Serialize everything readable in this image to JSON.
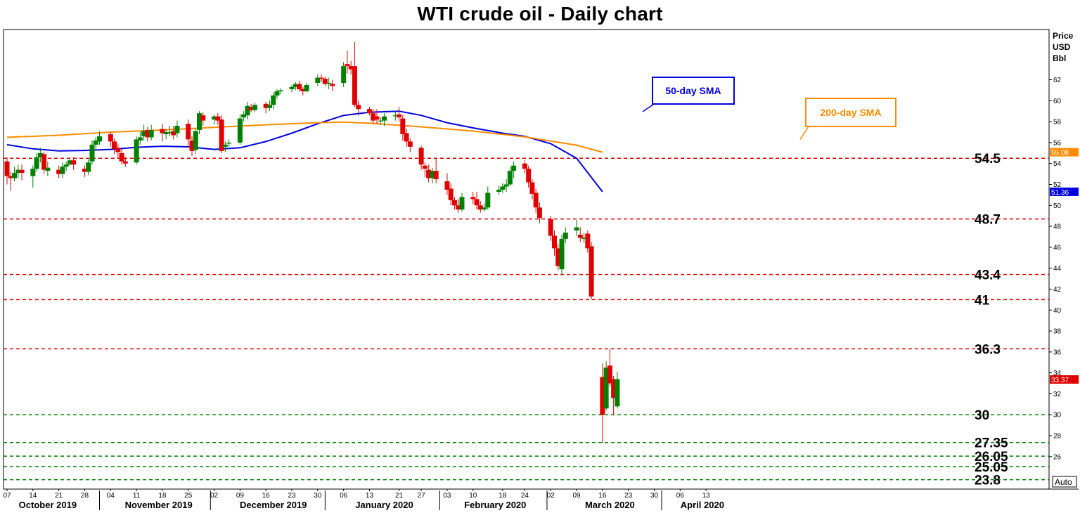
{
  "title": "WTI crude oil - Daily chart",
  "axis_unit": [
    "Price",
    "USD",
    "Bbl"
  ],
  "auto_label": "Auto",
  "colors": {
    "up": "#008000",
    "down": "#e00000",
    "sma50": "#0000e0",
    "sma200": "#ff8c00",
    "resistance": "#e00000",
    "support": "#008000"
  },
  "chart_data": {
    "type": "candlestick",
    "ylim": [
      22.9,
      66.8
    ],
    "y_ticks": [
      26,
      28,
      30,
      32,
      34,
      36,
      38,
      40,
      42,
      44,
      46,
      48,
      50,
      52,
      54,
      56,
      58,
      60,
      62
    ],
    "x_ticks": [
      {
        "label": "07",
        "day": 0
      },
      {
        "label": "14",
        "day": 7
      },
      {
        "label": "21",
        "day": 14
      },
      {
        "label": "28",
        "day": 21
      },
      {
        "label": "04",
        "day": 28
      },
      {
        "label": "11",
        "day": 35
      },
      {
        "label": "18",
        "day": 42
      },
      {
        "label": "25",
        "day": 49
      },
      {
        "label": "02",
        "day": 56
      },
      {
        "label": "09",
        "day": 63
      },
      {
        "label": "16",
        "day": 70
      },
      {
        "label": "23",
        "day": 77
      },
      {
        "label": "30",
        "day": 84
      },
      {
        "label": "06",
        "day": 91
      },
      {
        "label": "13",
        "day": 98
      },
      {
        "label": "21",
        "day": 106
      },
      {
        "label": "27",
        "day": 112
      },
      {
        "label": "03",
        "day": 119
      },
      {
        "label": "10",
        "day": 126
      },
      {
        "label": "18",
        "day": 134
      },
      {
        "label": "24",
        "day": 140
      },
      {
        "label": "02",
        "day": 147
      },
      {
        "label": "09",
        "day": 154
      },
      {
        "label": "16",
        "day": 161
      },
      {
        "label": "23",
        "day": 168
      },
      {
        "label": "30",
        "day": 175
      },
      {
        "label": "06",
        "day": 182
      },
      {
        "label": "13",
        "day": 189
      }
    ],
    "months": [
      {
        "label": "October 2019",
        "center_day": 11,
        "sep_day": null
      },
      {
        "label": "November 2019",
        "center_day": 41,
        "sep_day": 25
      },
      {
        "label": "December 2019",
        "center_day": 72,
        "sep_day": 55
      },
      {
        "label": "January 2020",
        "center_day": 102,
        "sep_day": 86
      },
      {
        "label": "February 2020",
        "center_day": 132,
        "sep_day": 117
      },
      {
        "label": "March 2020",
        "center_day": 163,
        "sep_day": 146
      },
      {
        "label": "April 2020",
        "center_day": 188,
        "sep_day": 177
      }
    ],
    "candles": [
      [
        0,
        54.2,
        52.8,
        54.6,
        52.0
      ],
      [
        1,
        52.8,
        52.6,
        53.2,
        51.4
      ],
      [
        2,
        52.6,
        53.1,
        53.7,
        52.3
      ],
      [
        3,
        53.1,
        53.4,
        53.9,
        52.6
      ],
      [
        4,
        53.4,
        53.1,
        53.9,
        52.4
      ],
      [
        7,
        52.8,
        53.5,
        53.8,
        51.7
      ],
      [
        8,
        53.5,
        54.6,
        55.0,
        53.2
      ],
      [
        9,
        54.6,
        55.0,
        55.5,
        54.1
      ],
      [
        10,
        54.9,
        53.4,
        55.1,
        53.0
      ],
      [
        11,
        53.3,
        53.6,
        54.2,
        52.8
      ],
      [
        14,
        53.4,
        53.0,
        53.8,
        52.6
      ],
      [
        15,
        53.0,
        53.7,
        54.1,
        52.6
      ],
      [
        16,
        53.7,
        53.9,
        54.2,
        53.3
      ],
      [
        17,
        53.9,
        54.3,
        54.6,
        53.8
      ],
      [
        18,
        54.3,
        53.9,
        54.6,
        53.4
      ],
      [
        21,
        53.5,
        53.2,
        53.8,
        52.7
      ],
      [
        22,
        53.2,
        54.1,
        54.4,
        52.9
      ],
      [
        23,
        54.2,
        55.8,
        56.2,
        53.9
      ],
      [
        24,
        55.8,
        56.2,
        56.5,
        55.4
      ],
      [
        25,
        56.1,
        56.6,
        57.1,
        55.8
      ],
      [
        28,
        56.8,
        56.1,
        57.0,
        55.6
      ],
      [
        29,
        56.1,
        55.4,
        56.4,
        54.9
      ],
      [
        30,
        55.5,
        55.1,
        55.9,
        54.5
      ],
      [
        31,
        55.0,
        54.2,
        55.4,
        53.9
      ],
      [
        32,
        54.2,
        54.0,
        54.6,
        53.7
      ],
      [
        35,
        54.1,
        56.3,
        56.6,
        53.9
      ],
      [
        36,
        56.2,
        56.5,
        57.0,
        55.8
      ],
      [
        37,
        56.6,
        57.1,
        57.7,
        56.2
      ],
      [
        38,
        57.2,
        56.5,
        57.5,
        56.1
      ],
      [
        39,
        56.5,
        57.2,
        57.7,
        56.2
      ],
      [
        42,
        57.3,
        56.9,
        57.8,
        56.1
      ],
      [
        43,
        56.8,
        57.0,
        57.3,
        56.3
      ],
      [
        44,
        56.9,
        57.0,
        57.6,
        56.6
      ],
      [
        45,
        57.1,
        56.7,
        57.6,
        56.3
      ],
      [
        46,
        56.9,
        57.6,
        58.1,
        56.5
      ],
      [
        49,
        57.8,
        56.3,
        58.2,
        55.6
      ],
      [
        50,
        56.2,
        55.2,
        56.6,
        54.7
      ],
      [
        51,
        55.3,
        57.1,
        57.3,
        54.9
      ],
      [
        52,
        57.2,
        58.8,
        59.0,
        56.8
      ],
      [
        53,
        58.6,
        58.1,
        58.9,
        57.6
      ],
      [
        56,
        58.2,
        58.5,
        58.7,
        57.7
      ],
      [
        57,
        58.5,
        58.1,
        58.8,
        57.7
      ],
      [
        58,
        58.2,
        55.2,
        58.6,
        55.0
      ],
      [
        59,
        55.6,
        55.8,
        56.1,
        55.1
      ],
      [
        60,
        55.9,
        56.0,
        56.3,
        55.6
      ],
      [
        63,
        56.0,
        58.3,
        58.7,
        55.8
      ],
      [
        64,
        58.4,
        58.7,
        59.0,
        58.0
      ],
      [
        65,
        58.6,
        59.5,
        59.9,
        58.2
      ],
      [
        66,
        59.4,
        59.1,
        59.7,
        58.9
      ],
      [
        67,
        59.1,
        59.6,
        59.8,
        58.9
      ],
      [
        70,
        59.7,
        59.3,
        59.9,
        58.8
      ],
      [
        71,
        59.3,
        59.6,
        60.0,
        59.0
      ],
      [
        72,
        59.6,
        60.5,
        60.8,
        59.2
      ],
      [
        73,
        60.5,
        60.9,
        61.1,
        60.2
      ],
      [
        74,
        60.9,
        61.0,
        61.2,
        60.6
      ],
      [
        77,
        61.1,
        61.3,
        61.5,
        60.8
      ],
      [
        78,
        61.3,
        61.6,
        61.8,
        61.0
      ],
      [
        79,
        61.6,
        61.1,
        61.9,
        60.9
      ],
      [
        80,
        61.1,
        60.9,
        61.3,
        60.5
      ],
      [
        81,
        60.9,
        61.5,
        61.7,
        60.8
      ],
      [
        84,
        61.7,
        62.2,
        62.5,
        61.4
      ],
      [
        85,
        62.2,
        62.1,
        62.5,
        61.8
      ],
      [
        86,
        62.1,
        61.6,
        62.3,
        61.4
      ],
      [
        87,
        61.6,
        61.7,
        62.2,
        61.1
      ],
      [
        88,
        61.6,
        61.4,
        62.0,
        60.9
      ],
      [
        91,
        61.7,
        63.3,
        63.7,
        61.3
      ],
      [
        92,
        63.5,
        63.3,
        64.8,
        62.6
      ],
      [
        93,
        63.3,
        63.0,
        63.8,
        62.5
      ],
      [
        94,
        63.3,
        59.6,
        65.6,
        59.4
      ],
      [
        95,
        59.6,
        59.2,
        60.0,
        58.6
      ],
      [
        98,
        59.2,
        58.8,
        59.4,
        58.6
      ],
      [
        99,
        58.8,
        58.1,
        59.2,
        57.8
      ],
      [
        100,
        58.5,
        58.2,
        59.2,
        57.8
      ],
      [
        101,
        58.1,
        58.1,
        58.4,
        57.7
      ],
      [
        102,
        58.1,
        58.5,
        58.8,
        57.6
      ],
      [
        105,
        58.6,
        58.6,
        59.0,
        58.1
      ],
      [
        106,
        58.7,
        58.4,
        59.4,
        58.0
      ],
      [
        107,
        58.3,
        56.8,
        58.6,
        56.2
      ],
      [
        108,
        56.9,
        56.1,
        57.3,
        55.6
      ],
      [
        109,
        56.1,
        55.6,
        56.4,
        55.1
      ],
      [
        112,
        55.5,
        53.9,
        55.7,
        53.4
      ],
      [
        113,
        53.8,
        53.5,
        54.1,
        52.7
      ],
      [
        114,
        53.4,
        52.6,
        53.9,
        52.2
      ],
      [
        115,
        52.6,
        53.3,
        53.6,
        52.1
      ],
      [
        116,
        53.3,
        52.5,
        54.5,
        52.1
      ],
      [
        119,
        52.3,
        51.5,
        53.1,
        51.0
      ],
      [
        120,
        51.6,
        50.5,
        52.1,
        50.0
      ],
      [
        121,
        50.5,
        50.0,
        50.8,
        49.6
      ],
      [
        122,
        50.0,
        49.6,
        50.6,
        49.3
      ],
      [
        123,
        49.6,
        50.8,
        51.2,
        49.4
      ],
      [
        126,
        50.8,
        50.6,
        51.3,
        50.1
      ],
      [
        127,
        50.6,
        50.0,
        51.3,
        49.6
      ],
      [
        128,
        50.0,
        49.6,
        50.4,
        49.3
      ],
      [
        129,
        49.6,
        49.8,
        50.2,
        49.4
      ],
      [
        130,
        49.8,
        51.2,
        51.8,
        49.6
      ],
      [
        133,
        51.3,
        51.5,
        51.9,
        51.0
      ],
      [
        134,
        51.5,
        51.8,
        52.1,
        51.2
      ],
      [
        135,
        51.8,
        52.0,
        52.5,
        51.3
      ],
      [
        136,
        52.0,
        53.3,
        53.7,
        51.8
      ],
      [
        137,
        53.3,
        53.8,
        54.2,
        52.6
      ],
      [
        140,
        54.0,
        53.5,
        54.3,
        53.1
      ],
      [
        141,
        53.5,
        52.2,
        53.8,
        51.7
      ],
      [
        142,
        52.2,
        51.1,
        52.5,
        50.6
      ],
      [
        143,
        51.2,
        49.8,
        51.6,
        49.3
      ],
      [
        144,
        49.8,
        48.8,
        50.3,
        48.3
      ],
      [
        147,
        48.7,
        47.1,
        49.0,
        46.6
      ],
      [
        148,
        47.1,
        45.9,
        47.6,
        45.2
      ],
      [
        149,
        45.9,
        44.2,
        46.3,
        43.8
      ],
      [
        150,
        43.9,
        46.8,
        47.2,
        43.4
      ],
      [
        151,
        46.8,
        47.4,
        47.9,
        46.4
      ],
      [
        154,
        47.6,
        47.9,
        48.6,
        47.1
      ],
      [
        155,
        47.2,
        46.9,
        47.9,
        46.5
      ],
      [
        156,
        46.8,
        46.9,
        47.4,
        46.4
      ],
      [
        157,
        47.3,
        45.9,
        47.6,
        45.5
      ],
      [
        158,
        46.1,
        41.3,
        46.5,
        41.0
      ],
      [
        161,
        33.6,
        30.0,
        34.9,
        27.3
      ],
      [
        162,
        30.6,
        34.5,
        35.1,
        30.4
      ],
      [
        163,
        34.7,
        33.0,
        36.3,
        32.7
      ],
      [
        164,
        33.4,
        31.6,
        33.7,
        30.0
      ],
      [
        165,
        30.8,
        33.4,
        34.1,
        30.6
      ]
    ],
    "series": [
      {
        "name": "50-day SMA",
        "points": [
          [
            0,
            55.8
          ],
          [
            7,
            55.4
          ],
          [
            14,
            55.2
          ],
          [
            21,
            55.25
          ],
          [
            28,
            55.35
          ],
          [
            35,
            55.55
          ],
          [
            42,
            55.65
          ],
          [
            49,
            55.6
          ],
          [
            56,
            55.35
          ],
          [
            63,
            55.5
          ],
          [
            70,
            56.1
          ],
          [
            77,
            56.9
          ],
          [
            84,
            57.8
          ],
          [
            91,
            58.6
          ],
          [
            98,
            58.9
          ],
          [
            106,
            59.0
          ],
          [
            112,
            58.6
          ],
          [
            119,
            57.9
          ],
          [
            126,
            57.4
          ],
          [
            134,
            56.9
          ],
          [
            140,
            56.6
          ],
          [
            147,
            55.9
          ],
          [
            154,
            54.5
          ],
          [
            161,
            51.3
          ]
        ],
        "last_value": "51.36"
      },
      {
        "name": "200-day SMA",
        "points": [
          [
            0,
            56.5
          ],
          [
            14,
            56.7
          ],
          [
            28,
            57.0
          ],
          [
            42,
            57.2
          ],
          [
            56,
            57.45
          ],
          [
            70,
            57.7
          ],
          [
            84,
            57.9
          ],
          [
            91,
            57.95
          ],
          [
            98,
            57.85
          ],
          [
            112,
            57.5
          ],
          [
            126,
            57.1
          ],
          [
            140,
            56.55
          ],
          [
            154,
            55.75
          ],
          [
            161,
            55.08
          ]
        ],
        "last_value": "55.08"
      }
    ],
    "last_price": "33.37",
    "last_price_value": 33.37,
    "levels": [
      {
        "label": "54.5",
        "value": 54.5,
        "kind": "resistance"
      },
      {
        "label": "48.7",
        "value": 48.7,
        "kind": "resistance"
      },
      {
        "label": "43.4",
        "value": 43.4,
        "kind": "resistance"
      },
      {
        "label": "41",
        "value": 41.0,
        "kind": "resistance"
      },
      {
        "label": "36.3",
        "value": 36.3,
        "kind": "resistance"
      },
      {
        "label": "30",
        "value": 30.0,
        "kind": "support"
      },
      {
        "label": "27.35",
        "value": 27.35,
        "kind": "support"
      },
      {
        "label": "26.05",
        "value": 26.05,
        "kind": "support"
      },
      {
        "label": "25.05",
        "value": 25.05,
        "kind": "support"
      },
      {
        "label": "23.8",
        "value": 23.8,
        "kind": "support"
      }
    ]
  }
}
